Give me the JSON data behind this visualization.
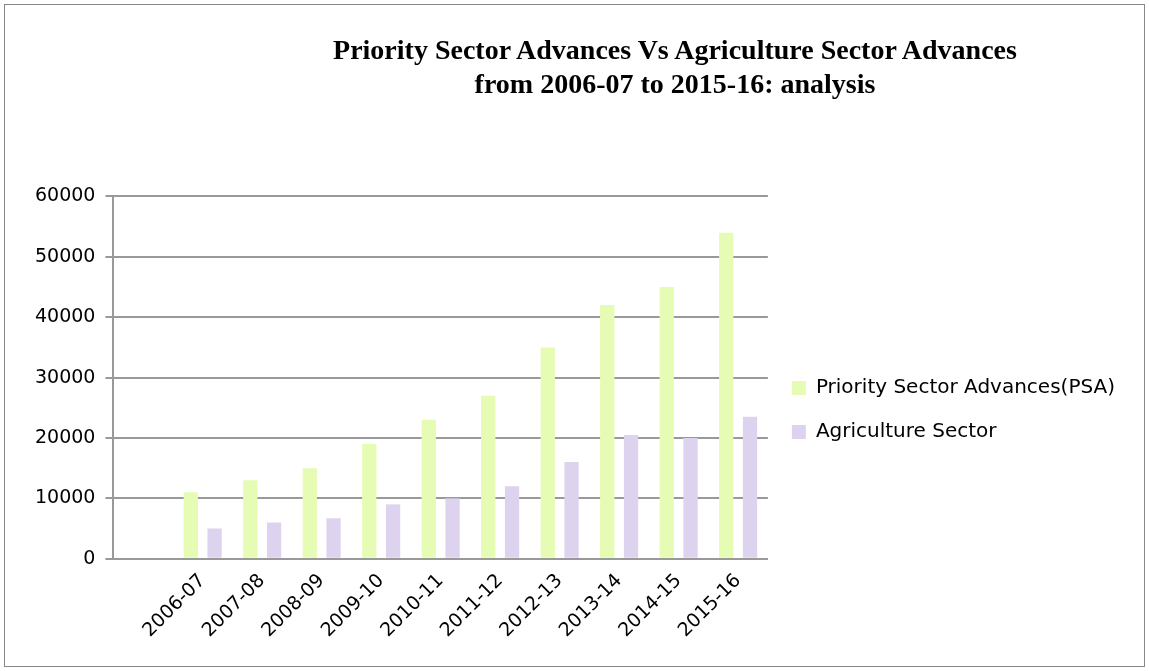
{
  "chart_data": {
    "type": "bar",
    "title": "Priority Sector Advances Vs Agriculture Sector Advances from 2006-07 to 2015-16: analysis",
    "categories": [
      null,
      "2006-07",
      "2007-08",
      "2008-09",
      "2009-10",
      "2010-11",
      "2011-12",
      "2012-13",
      "2013-14",
      "2014-15",
      "2015-16"
    ],
    "series": [
      {
        "name": "Priority Sector Advances(PSA)",
        "color": "#e6fbb4",
        "values": [
          0,
          11000,
          13000,
          15000,
          19000,
          23000,
          27000,
          35000,
          42000,
          45000,
          54000
        ]
      },
      {
        "name": "Agriculture Sector",
        "color": "#ddd3ef",
        "values": [
          null,
          5000,
          6000,
          6700,
          9000,
          10000,
          12000,
          16000,
          20500,
          20000,
          23500
        ]
      }
    ],
    "ylim": [
      0,
      60000
    ],
    "yticks": [
      0,
      10000,
      20000,
      30000,
      40000,
      50000,
      60000
    ],
    "grid": "y",
    "legend": "right"
  }
}
